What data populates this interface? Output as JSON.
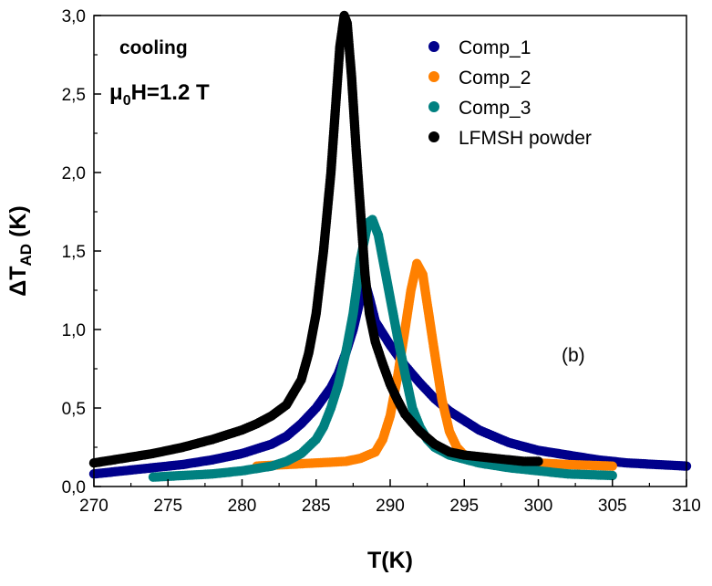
{
  "chart_data": {
    "type": "scatter",
    "xlabel": "T(K)",
    "ylabel": {
      "prefix": "ΔT",
      "sub": "AD",
      "suffix": " (K)"
    },
    "xlim": [
      270,
      310
    ],
    "ylim": [
      0,
      3.0
    ],
    "x_ticks": [
      "270",
      "275",
      "280",
      "285",
      "290",
      "295",
      "300",
      "305",
      "310"
    ],
    "y_ticks": [
      "0,0",
      "0,5",
      "1,0",
      "1,5",
      "2,0",
      "2,5",
      "3,0"
    ],
    "grid": false,
    "legend_position": "top-right",
    "annotations": {
      "mode": "cooling",
      "field": {
        "mu": "μ",
        "sub": "0",
        "rest": "H=1.2 T"
      },
      "panel": "(b)"
    },
    "series": [
      {
        "name": "Comp_1",
        "color": "#00008B",
        "points": [
          [
            270,
            0.08
          ],
          [
            272,
            0.1
          ],
          [
            274,
            0.12
          ],
          [
            276,
            0.14
          ],
          [
            278,
            0.17
          ],
          [
            280,
            0.21
          ],
          [
            282,
            0.27
          ],
          [
            283,
            0.32
          ],
          [
            284,
            0.4
          ],
          [
            285,
            0.5
          ],
          [
            286,
            0.63
          ],
          [
            286.5,
            0.72
          ],
          [
            287,
            0.85
          ],
          [
            287.5,
            1.0
          ],
          [
            288,
            1.2
          ],
          [
            288.3,
            1.3
          ],
          [
            288.6,
            1.2
          ],
          [
            289,
            1.05
          ],
          [
            290,
            0.9
          ],
          [
            291,
            0.77
          ],
          [
            292,
            0.66
          ],
          [
            293,
            0.56
          ],
          [
            294,
            0.48
          ],
          [
            295,
            0.42
          ],
          [
            296,
            0.36
          ],
          [
            297,
            0.32
          ],
          [
            298,
            0.28
          ],
          [
            300,
            0.23
          ],
          [
            302,
            0.2
          ],
          [
            304,
            0.17
          ],
          [
            306,
            0.15
          ],
          [
            308,
            0.14
          ],
          [
            310,
            0.13
          ]
        ]
      },
      {
        "name": "Comp_2",
        "color": "#FF8000",
        "points": [
          [
            281,
            0.13
          ],
          [
            283,
            0.14
          ],
          [
            285,
            0.15
          ],
          [
            287,
            0.16
          ],
          [
            288,
            0.18
          ],
          [
            289,
            0.22
          ],
          [
            289.5,
            0.3
          ],
          [
            290,
            0.45
          ],
          [
            290.5,
            0.7
          ],
          [
            291,
            1.0
          ],
          [
            291.4,
            1.25
          ],
          [
            291.8,
            1.42
          ],
          [
            292.2,
            1.35
          ],
          [
            292.6,
            1.1
          ],
          [
            293,
            0.85
          ],
          [
            293.5,
            0.55
          ],
          [
            294,
            0.35
          ],
          [
            294.5,
            0.25
          ],
          [
            295,
            0.2
          ],
          [
            296,
            0.18
          ],
          [
            298,
            0.16
          ],
          [
            300,
            0.15
          ],
          [
            302,
            0.14
          ],
          [
            305,
            0.13
          ]
        ]
      },
      {
        "name": "Comp_3",
        "color": "#008080",
        "points": [
          [
            274,
            0.06
          ],
          [
            276,
            0.07
          ],
          [
            278,
            0.08
          ],
          [
            280,
            0.1
          ],
          [
            282,
            0.13
          ],
          [
            283,
            0.16
          ],
          [
            284,
            0.21
          ],
          [
            285,
            0.3
          ],
          [
            285.5,
            0.38
          ],
          [
            286,
            0.5
          ],
          [
            286.5,
            0.65
          ],
          [
            287,
            0.85
          ],
          [
            287.5,
            1.1
          ],
          [
            288,
            1.45
          ],
          [
            288.5,
            1.68
          ],
          [
            288.8,
            1.7
          ],
          [
            289.2,
            1.6
          ],
          [
            289.5,
            1.45
          ],
          [
            290,
            1.2
          ],
          [
            290.5,
            0.95
          ],
          [
            291,
            0.72
          ],
          [
            291.5,
            0.5
          ],
          [
            292,
            0.38
          ],
          [
            292.5,
            0.3
          ],
          [
            293,
            0.25
          ],
          [
            294,
            0.2
          ],
          [
            296,
            0.15
          ],
          [
            298,
            0.12
          ],
          [
            300,
            0.1
          ],
          [
            302,
            0.08
          ],
          [
            305,
            0.07
          ]
        ]
      },
      {
        "name": "LFMSH powder",
        "color": "#000000",
        "points": [
          [
            270,
            0.15
          ],
          [
            272,
            0.18
          ],
          [
            274,
            0.21
          ],
          [
            276,
            0.25
          ],
          [
            278,
            0.3
          ],
          [
            280,
            0.36
          ],
          [
            281,
            0.4
          ],
          [
            282,
            0.45
          ],
          [
            283,
            0.52
          ],
          [
            284,
            0.68
          ],
          [
            284.5,
            0.85
          ],
          [
            285,
            1.1
          ],
          [
            285.5,
            1.5
          ],
          [
            286,
            2.0
          ],
          [
            286.3,
            2.4
          ],
          [
            286.6,
            2.8
          ],
          [
            286.9,
            3.0
          ],
          [
            287.1,
            2.95
          ],
          [
            287.4,
            2.6
          ],
          [
            287.7,
            2.15
          ],
          [
            288,
            1.75
          ],
          [
            288.3,
            1.35
          ],
          [
            288.6,
            1.1
          ],
          [
            289,
            0.92
          ],
          [
            289.5,
            0.78
          ],
          [
            290,
            0.65
          ],
          [
            290.5,
            0.55
          ],
          [
            291,
            0.46
          ],
          [
            292,
            0.35
          ],
          [
            293,
            0.27
          ],
          [
            294,
            0.22
          ],
          [
            295,
            0.2
          ],
          [
            296,
            0.19
          ],
          [
            297,
            0.18
          ],
          [
            298,
            0.17
          ],
          [
            299,
            0.16
          ],
          [
            300,
            0.16
          ]
        ]
      }
    ]
  }
}
